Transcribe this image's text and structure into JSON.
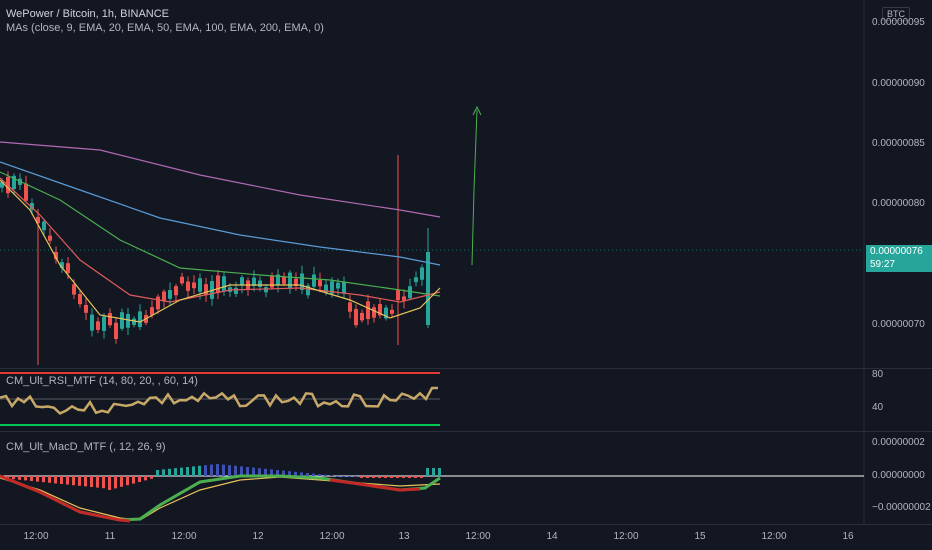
{
  "header": {
    "symbol_line": "WePower / Bitcoin, 1h, BINANCE",
    "ma_line": "MAs (close, 9, EMA, 20, EMA, 50, EMA, 100, EMA, 200, EMA, 0)"
  },
  "price_axis": {
    "currency": "BTC",
    "labels": [
      "0.00000095",
      "0.00000090",
      "0.00000085",
      "0.00000080",
      "0.00000070"
    ],
    "last_price": "0.00000076",
    "countdown": "59:27"
  },
  "rsi": {
    "label": "CM_Ult_RSI_MTF (14, 80, 20, , 60, 14)",
    "axis_labels": [
      "80",
      "40"
    ]
  },
  "macd": {
    "label": "CM_Ult_MacD_MTF (, 12, 26, 9)",
    "axis_labels": [
      "0.00000002",
      "0.00000000",
      "−0.00000002"
    ]
  },
  "time_axis": {
    "labels": [
      "12:00",
      "11",
      "12:00",
      "12",
      "12:00",
      "13",
      "12:00",
      "14",
      "12:00",
      "15",
      "12:00",
      "16"
    ]
  },
  "colors": {
    "background": "#131722",
    "up": "#26a69a",
    "down": "#ef5350",
    "ema9": "#e6c35a",
    "ema20": "#e05a5a",
    "ema50": "#4caf50",
    "ema100": "#5b9bd5",
    "ema200": "#b06ab3",
    "rsi_line": "#c8a868",
    "macd_green": "#4caf50",
    "macd_red": "#c62828"
  }
}
